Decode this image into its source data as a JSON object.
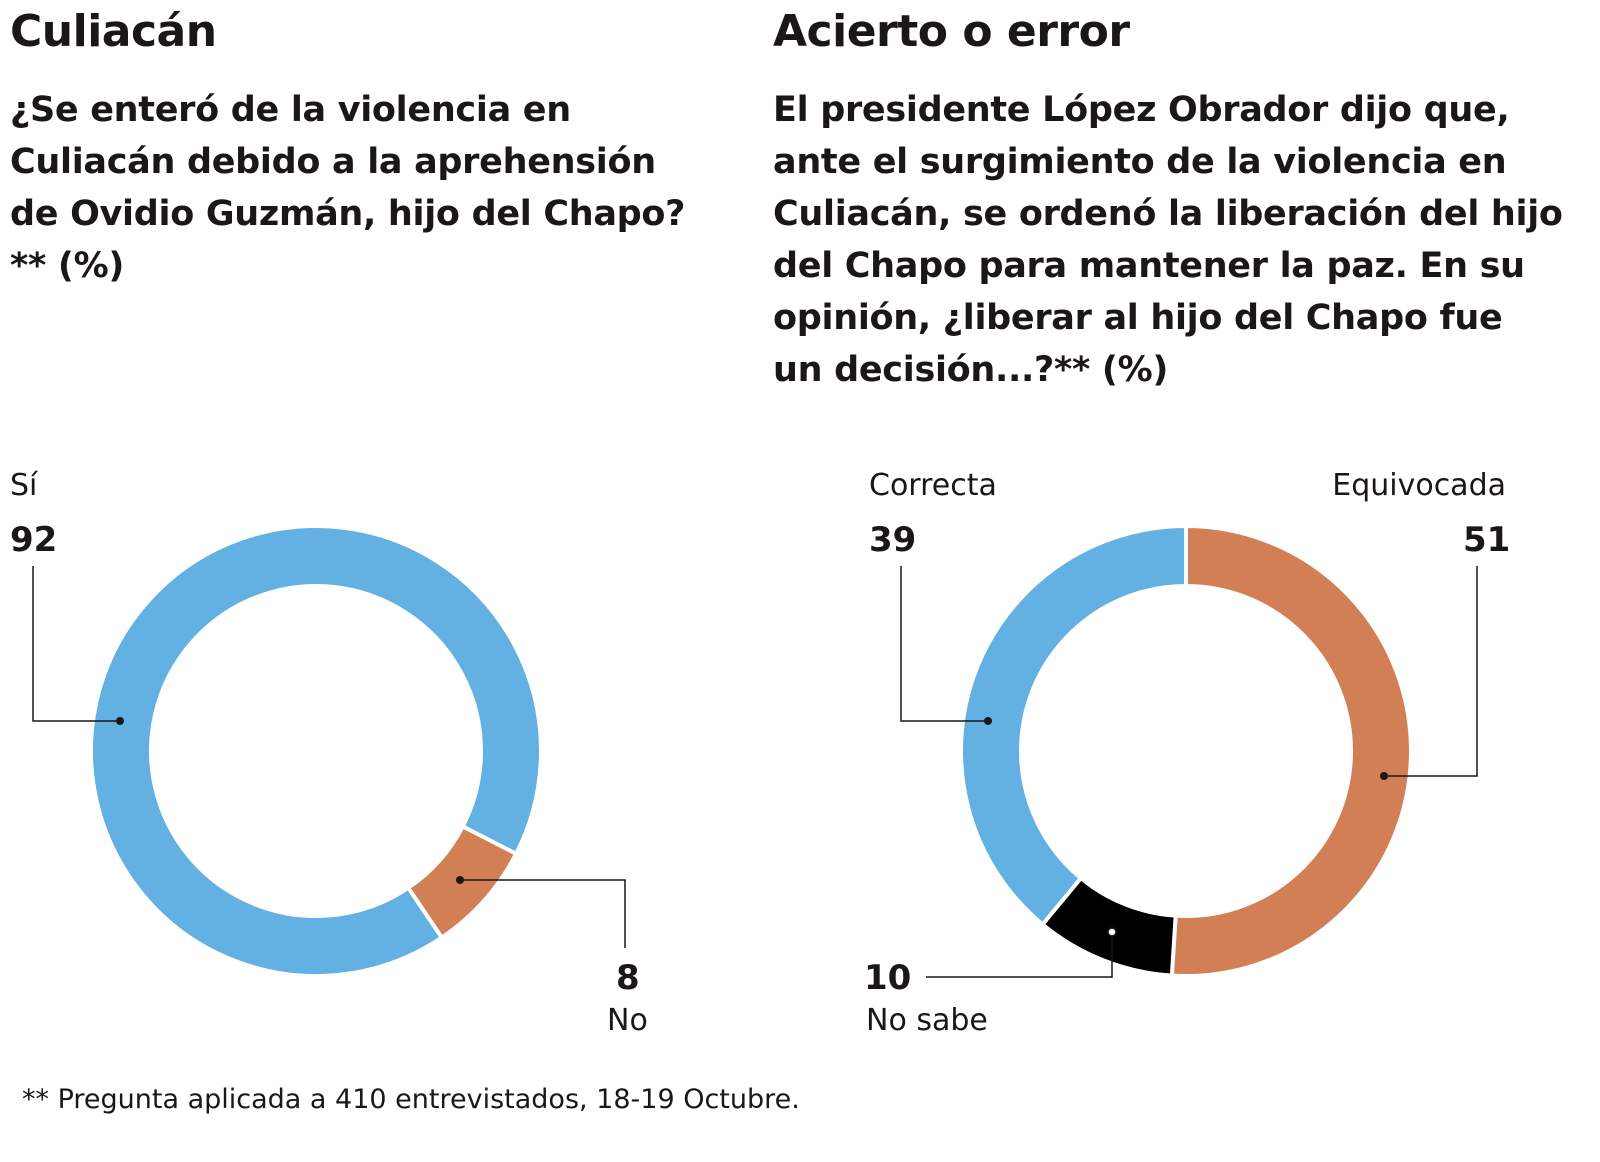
{
  "left": {
    "title": "Culiacán",
    "question": "¿Se enteró de la violencia en Culiacán debido a la aprehensión de Ovidio Guzmán, hijo del Chapo?** (%)"
  },
  "right": {
    "title": "Acierto o error",
    "question": "El presidente López Obrador dijo que, ante el surgimiento de la violencia en Culiacán, se ordenó la liberación del hijo del Chapo para mantener la paz. En su opinión, ¿liberar al hijo del Chapo fue un decisión...?**  (%)"
  },
  "footnote": "** Pregunta aplicada a 410 entrevistados, 18-19 Octubre.",
  "chart_data": [
    {
      "type": "pie",
      "donut": true,
      "title": "Culiacán",
      "categories": [
        "Sí",
        "No"
      ],
      "values": [
        92,
        8
      ],
      "labels": [
        "92",
        "8"
      ],
      "colors": [
        "#63b0e3",
        "#d27f56"
      ]
    },
    {
      "type": "pie",
      "donut": true,
      "title": "Acierto o error",
      "categories": [
        "Equivocada",
        "No sabe",
        "Correcta"
      ],
      "values": [
        51,
        10,
        39
      ],
      "labels": [
        "51",
        "10",
        "39"
      ],
      "colors": [
        "#d27f56",
        "#000000",
        "#63b0e3"
      ]
    }
  ]
}
